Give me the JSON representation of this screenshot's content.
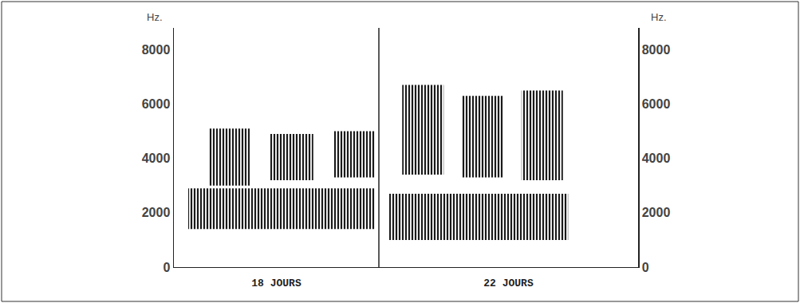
{
  "chart_data": [
    {
      "type": "spectrogram",
      "x_label": "18 JOURS",
      "y_label": "Hz.",
      "xlim": [
        0,
        1
      ],
      "ylim": [
        0,
        8800
      ],
      "yticks": [
        0,
        2000,
        4000,
        6000,
        8000
      ],
      "tick_labels": "y",
      "color": "#1a1a1a",
      "elements": [
        {
          "time": [
            0.17,
            0.37
          ],
          "freq": [
            3000,
            5100
          ]
        },
        {
          "time": [
            0.47,
            0.68
          ],
          "freq": [
            3200,
            4900
          ]
        },
        {
          "time": [
            0.78,
            0.98
          ],
          "freq": [
            3300,
            5000
          ]
        },
        {
          "time": [
            0.07,
            0.98
          ],
          "freq": [
            1400,
            2900
          ]
        }
      ]
    },
    {
      "type": "spectrogram",
      "x_label": "22 JOURS",
      "y_label": "Hz.",
      "xlim": [
        0,
        1
      ],
      "ylim": [
        0,
        8800
      ],
      "yticks": [
        0,
        2000,
        4000,
        6000,
        8000
      ],
      "tick_labels": "y",
      "color": "#1a1a1a",
      "elements": [
        {
          "time": [
            0.09,
            0.25
          ],
          "freq": [
            3400,
            6700
          ]
        },
        {
          "time": [
            0.32,
            0.48
          ],
          "freq": [
            3300,
            6300
          ]
        },
        {
          "time": [
            0.55,
            0.71
          ],
          "freq": [
            3200,
            6500
          ]
        },
        {
          "time": [
            0.04,
            0.73
          ],
          "freq": [
            1000,
            2700
          ]
        }
      ]
    }
  ]
}
